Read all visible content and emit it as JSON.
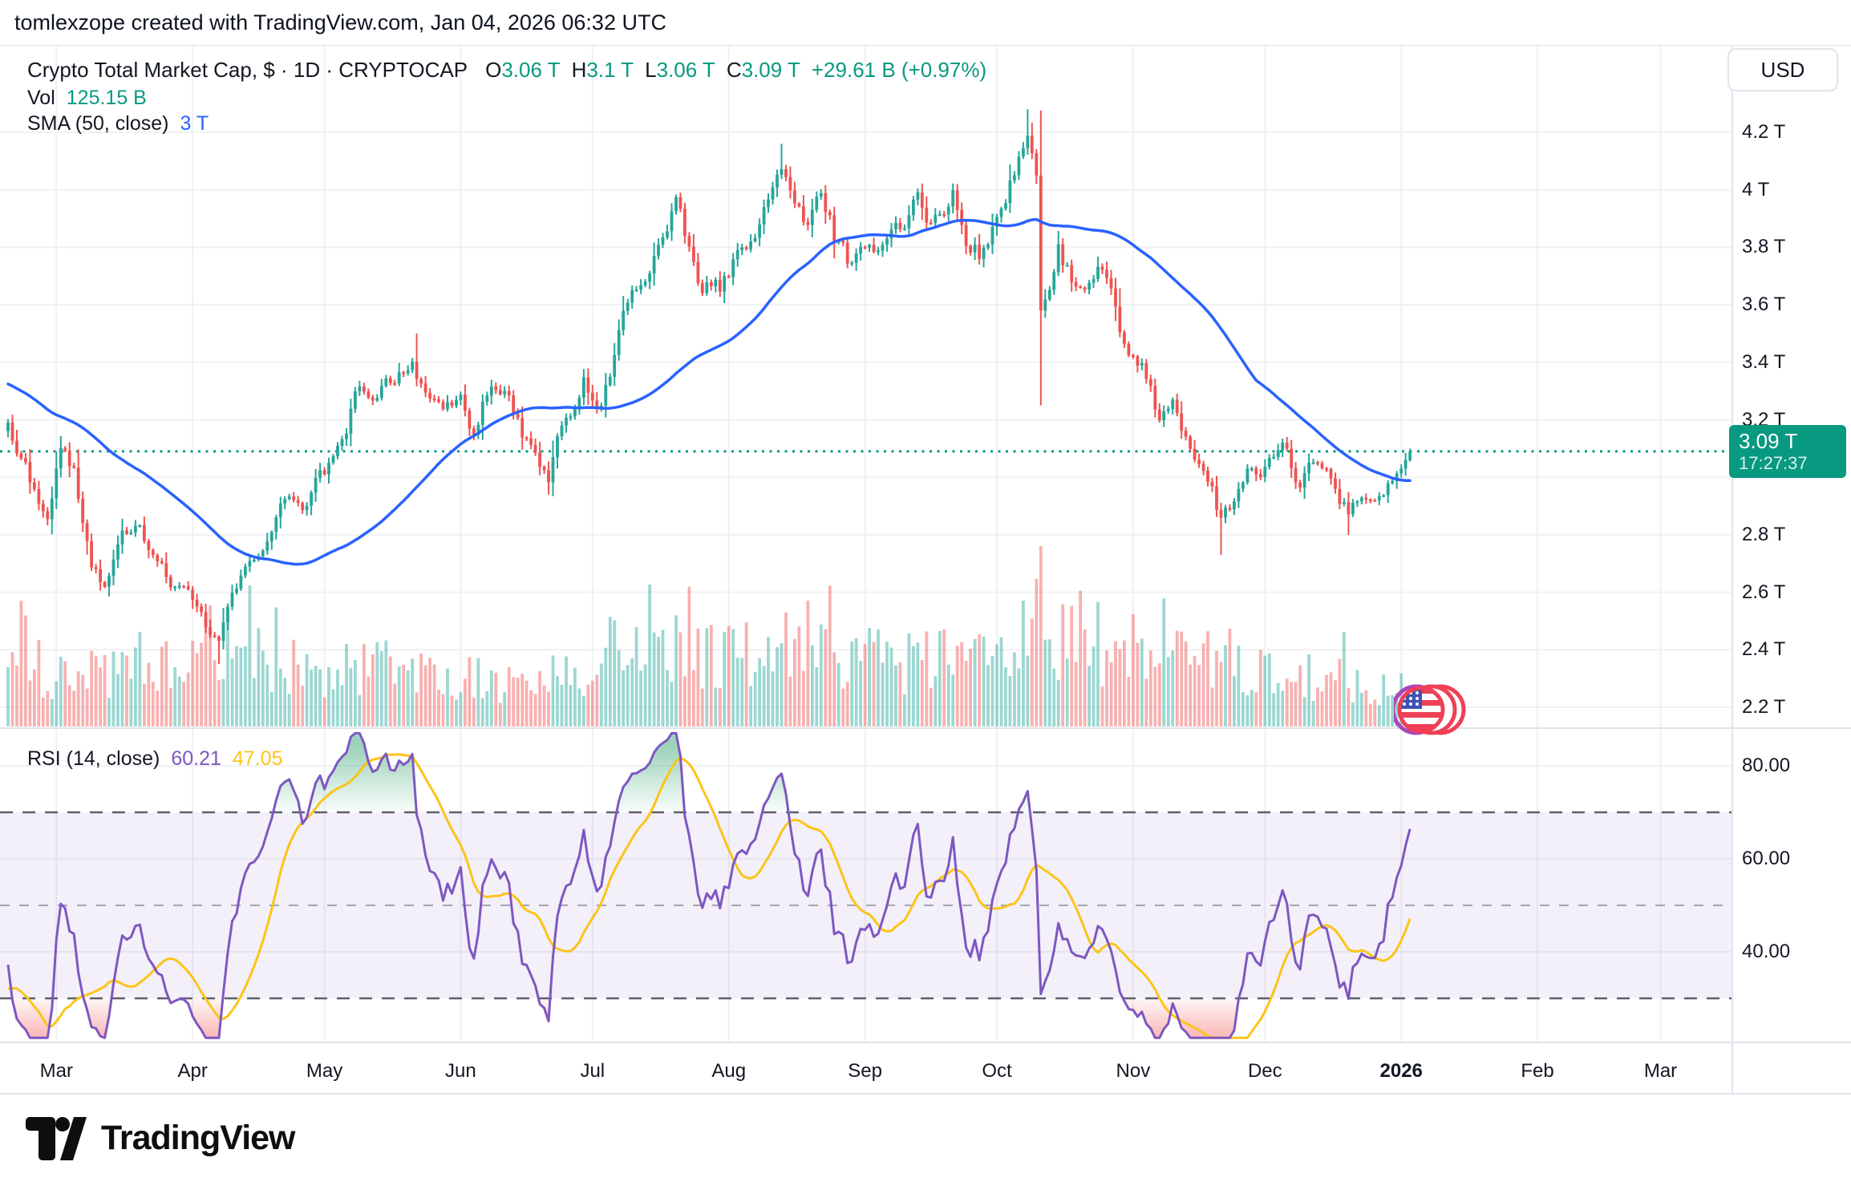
{
  "header": {
    "attribution": "tomlexzope created with TradingView.com, Jan 04, 2026 06:32 UTC"
  },
  "legend": {
    "title": "Crypto Total Market Cap, $ · 1D · CRYPTOCAP",
    "o_label": "O",
    "o_value": "3.06 T",
    "h_label": "H",
    "h_value": "3.1 T",
    "l_label": "L",
    "l_value": "3.06 T",
    "c_label": "C",
    "c_value": "3.09 T",
    "change": "+29.61 B (+0.97%)",
    "vol_label": "Vol",
    "vol_value": "125.15 B",
    "sma_label": "SMA (50, close)",
    "sma_value": "3 T"
  },
  "rsi_legend": {
    "label": "RSI (14, close)",
    "value": "60.21",
    "ma_value": "47.05"
  },
  "price_axis": {
    "currency": "USD",
    "ticks": [
      "4.2 T",
      "4 T",
      "3.8 T",
      "3.6 T",
      "3.4 T",
      "3.2 T",
      "2.8 T",
      "2.6 T",
      "2.4 T",
      "2.2 T"
    ],
    "last_price": "3.09 T",
    "countdown": "17:27:37"
  },
  "rsi_axis": {
    "ticks": [
      "80.00",
      "60.00",
      "40.00"
    ]
  },
  "time_axis": {
    "labels": [
      {
        "label": "Mar",
        "day": 11
      },
      {
        "label": "Apr",
        "day": 42
      },
      {
        "label": "May",
        "day": 72
      },
      {
        "label": "Jun",
        "day": 103
      },
      {
        "label": "Jul",
        "day": 133
      },
      {
        "label": "Aug",
        "day": 164
      },
      {
        "label": "Sep",
        "day": 195
      },
      {
        "label": "Oct",
        "day": 225
      },
      {
        "label": "Nov",
        "day": 256
      },
      {
        "label": "Dec",
        "day": 286
      },
      {
        "label": "2026",
        "day": 317,
        "bold": true
      },
      {
        "label": "Feb",
        "day": 348
      },
      {
        "label": "Mar",
        "day": 376
      }
    ]
  },
  "footer": {
    "brand": "TradingView"
  },
  "chart_data": {
    "type": "candlestick",
    "title": "Crypto Total Market Cap, $ · 1D · CRYPTOCAP",
    "timeframe": "1D",
    "x_range": [
      "2025-02-18",
      "2026-01-04"
    ],
    "days": 320,
    "ylim_trillions": [
      2.12,
      4.5
    ],
    "price_ticks_trillions": [
      4.2,
      4.0,
      3.8,
      3.6,
      3.4,
      3.2,
      2.8,
      2.6,
      2.4,
      2.2
    ],
    "grid_price_values": [
      4.2,
      4.0,
      3.8,
      3.6,
      3.4,
      3.2,
      3.0,
      2.8,
      2.6,
      2.4,
      2.2
    ],
    "rsi_tick_values": [
      80,
      60,
      40
    ],
    "rsi_bands": [
      70,
      50,
      30
    ],
    "current_price": 3.09,
    "last_bar": {
      "open": 3.06,
      "high": 3.1,
      "low": 3.055,
      "close": 3.09,
      "change": "+29.61 B",
      "change_pct": "+0.97%",
      "volume_display": "125.15 B"
    },
    "close_trend_anchors": [
      [
        0,
        3.18
      ],
      [
        3,
        3.08
      ],
      [
        6,
        2.95
      ],
      [
        9,
        2.88
      ],
      [
        12,
        3.1
      ],
      [
        15,
        3.02
      ],
      [
        19,
        2.7
      ],
      [
        22,
        2.62
      ],
      [
        26,
        2.78
      ],
      [
        29,
        2.86
      ],
      [
        33,
        2.72
      ],
      [
        38,
        2.62
      ],
      [
        42,
        2.56
      ],
      [
        45,
        2.48
      ],
      [
        48,
        2.42
      ],
      [
        50,
        2.55
      ],
      [
        55,
        2.7
      ],
      [
        60,
        2.82
      ],
      [
        64,
        2.95
      ],
      [
        67,
        2.88
      ],
      [
        71,
        3.0
      ],
      [
        76,
        3.1
      ],
      [
        79,
        3.28
      ],
      [
        84,
        3.3
      ],
      [
        88,
        3.36
      ],
      [
        92,
        3.4
      ],
      [
        96,
        3.27
      ],
      [
        99,
        3.2
      ],
      [
        103,
        3.27
      ],
      [
        106,
        3.14
      ],
      [
        110,
        3.35
      ],
      [
        113,
        3.28
      ],
      [
        118,
        3.12
      ],
      [
        123,
        2.99
      ],
      [
        126,
        3.18
      ],
      [
        129,
        3.24
      ],
      [
        131,
        3.33
      ],
      [
        134,
        3.22
      ],
      [
        137,
        3.35
      ],
      [
        141,
        3.62
      ],
      [
        144,
        3.68
      ],
      [
        148,
        3.8
      ],
      [
        152,
        3.93
      ],
      [
        155,
        3.78
      ],
      [
        158,
        3.65
      ],
      [
        162,
        3.66
      ],
      [
        166,
        3.76
      ],
      [
        170,
        3.88
      ],
      [
        173,
        3.95
      ],
      [
        176,
        4.1
      ],
      [
        179,
        3.92
      ],
      [
        182,
        3.86
      ],
      [
        185,
        4.0
      ],
      [
        188,
        3.84
      ],
      [
        192,
        3.72
      ],
      [
        196,
        3.78
      ],
      [
        200,
        3.86
      ],
      [
        204,
        3.9
      ],
      [
        207,
        3.98
      ],
      [
        210,
        3.88
      ],
      [
        213,
        3.92
      ],
      [
        215,
        3.98
      ],
      [
        218,
        3.82
      ],
      [
        221,
        3.78
      ],
      [
        224,
        3.85
      ],
      [
        227,
        3.98
      ],
      [
        230,
        4.12
      ],
      [
        232,
        4.18
      ],
      [
        234,
        4.05
      ],
      [
        235,
        3.58
      ],
      [
        237,
        3.65
      ],
      [
        239,
        3.78
      ],
      [
        242,
        3.7
      ],
      [
        245,
        3.62
      ],
      [
        248,
        3.72
      ],
      [
        251,
        3.65
      ],
      [
        253,
        3.48
      ],
      [
        256,
        3.4
      ],
      [
        259,
        3.35
      ],
      [
        262,
        3.2
      ],
      [
        265,
        3.28
      ],
      [
        268,
        3.15
      ],
      [
        271,
        3.05
      ],
      [
        274,
        2.95
      ],
      [
        276,
        2.85
      ],
      [
        279,
        2.92
      ],
      [
        282,
        3.02
      ],
      [
        285,
        2.98
      ],
      [
        288,
        3.05
      ],
      [
        291,
        3.1
      ],
      [
        294,
        2.96
      ],
      [
        297,
        3.05
      ],
      [
        300,
        3.02
      ],
      [
        303,
        2.92
      ],
      [
        305,
        2.88
      ],
      [
        308,
        2.95
      ],
      [
        311,
        2.92
      ],
      [
        314,
        2.96
      ],
      [
        317,
        3.03
      ],
      [
        319,
        3.09
      ]
    ],
    "preroll_anchors": [
      [
        -60,
        3.62
      ],
      [
        -40,
        3.45
      ],
      [
        -20,
        3.28
      ],
      [
        -8,
        3.22
      ],
      [
        0,
        3.18
      ]
    ],
    "wick_extremes": [
      [
        48,
        null,
        2.35
      ],
      [
        93,
        3.5,
        null
      ],
      [
        123,
        null,
        2.94
      ],
      [
        176,
        4.16,
        null
      ],
      [
        232,
        4.28,
        null
      ],
      [
        235,
        null,
        3.25
      ],
      [
        276,
        null,
        2.73
      ],
      [
        305,
        null,
        2.8
      ]
    ],
    "volume_envelope": [
      [
        0,
        0.5
      ],
      [
        20,
        0.45
      ],
      [
        40,
        0.6
      ],
      [
        47,
        0.85
      ],
      [
        52,
        0.6
      ],
      [
        70,
        0.45
      ],
      [
        85,
        0.55
      ],
      [
        100,
        0.45
      ],
      [
        115,
        0.4
      ],
      [
        130,
        0.5
      ],
      [
        146,
        0.8
      ],
      [
        155,
        0.6
      ],
      [
        170,
        0.65
      ],
      [
        176,
        0.85
      ],
      [
        190,
        0.6
      ],
      [
        205,
        0.55
      ],
      [
        220,
        0.6
      ],
      [
        230,
        0.75
      ],
      [
        235,
        1.0
      ],
      [
        240,
        0.75
      ],
      [
        255,
        0.65
      ],
      [
        270,
        0.6
      ],
      [
        280,
        0.55
      ],
      [
        295,
        0.45
      ],
      [
        305,
        0.4
      ],
      [
        312,
        0.3
      ],
      [
        319,
        0.45
      ]
    ],
    "indicators": {
      "sma": {
        "period": 50,
        "last_display": "3 T"
      },
      "rsi": {
        "period": 14,
        "ma_period": 14,
        "last": 60.21,
        "ma_last": 47.05
      }
    },
    "colors": {
      "up": "#26A69A",
      "down": "#EF5350",
      "volume_opacity": 0.45,
      "sma": "#2962FF",
      "rsi": "#7E57C2",
      "rsi_ma": "#FCC419",
      "band_fill": "rgba(126,87,194,0.09)",
      "overbought_fill": "#3CA675",
      "oversold_fill": "#EF5350",
      "dashed_major": "#5d606b",
      "dashed_mid": "#A3A6AF",
      "grid": "#F0F1F4",
      "separator": "#E0E3EB",
      "dotted_price": "#089981",
      "label_bg": "#089981",
      "text": "#131722"
    }
  }
}
